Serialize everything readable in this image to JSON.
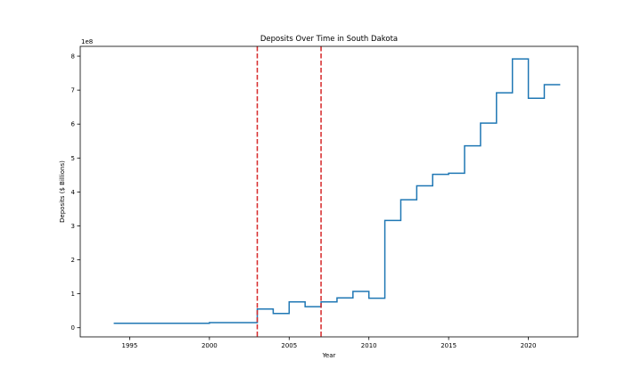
{
  "chart_data": {
    "type": "line",
    "drawstyle": "steps-post",
    "title": "Deposits Over Time in South Dakota",
    "xlabel": "Year",
    "ylabel": "Deposits ($ Billions)",
    "y_offset_text": "1e8",
    "xlim": [
      1991.9,
      2023.1
    ],
    "ylim": [
      -0.27,
      8.29
    ],
    "x_ticks": [
      1995,
      2000,
      2005,
      2010,
      2015,
      2020
    ],
    "y_ticks": [
      0,
      1,
      2,
      3,
      4,
      5,
      6,
      7,
      8
    ],
    "grid": false,
    "line_color": "#1f77b4",
    "series": [
      {
        "x": [
          1994,
          2000,
          2003,
          2004,
          2005,
          2006,
          2007,
          2008,
          2009,
          2010,
          2011,
          2012,
          2013,
          2014,
          2015,
          2016,
          2017,
          2018,
          2019,
          2020,
          2021,
          2022
        ],
        "values": [
          0.13,
          0.15,
          0.55,
          0.42,
          0.76,
          0.62,
          0.76,
          0.88,
          1.07,
          0.87,
          3.16,
          3.77,
          4.18,
          4.52,
          4.55,
          5.36,
          6.03,
          6.92,
          7.92,
          6.76,
          7.16,
          7.16
        ]
      }
    ],
    "vlines": [
      {
        "x": 2003,
        "color": "#d62728",
        "style": "dashed"
      },
      {
        "x": 2007,
        "color": "#d62728",
        "style": "dashed"
      }
    ]
  }
}
